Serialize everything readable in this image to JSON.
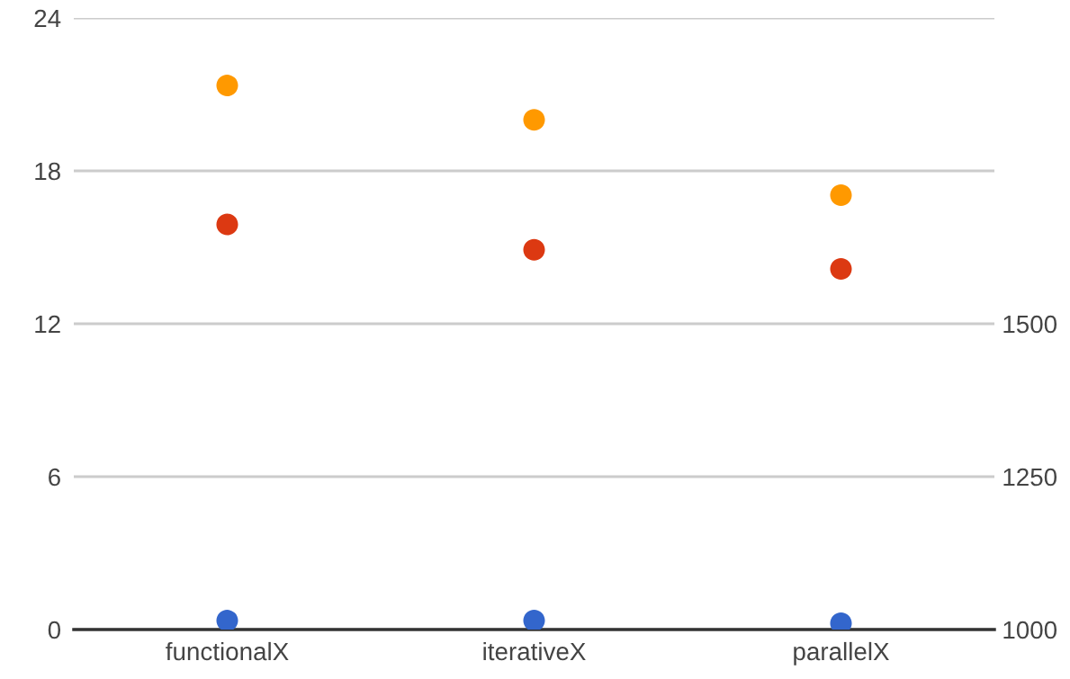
{
  "chart_data": {
    "type": "scatter",
    "categories": [
      "functionalX",
      "iterativeX",
      "parallelX"
    ],
    "series": [
      {
        "color": "#3366cc",
        "values": [
          0.35,
          0.35,
          0.25
        ]
      },
      {
        "color": "#dc3912",
        "values": [
          15.9,
          14.9,
          14.15
        ]
      },
      {
        "color": "#ff9900",
        "values": [
          21.35,
          20.0,
          17.05
        ]
      }
    ],
    "ylim": [
      0,
      24
    ],
    "yticks": [
      0,
      6,
      12,
      18,
      24
    ],
    "y2lim": [
      1000,
      2000
    ],
    "y2ticks": [
      1000,
      1250,
      1500
    ],
    "grid": "y",
    "marker": "circle",
    "legend": false
  }
}
